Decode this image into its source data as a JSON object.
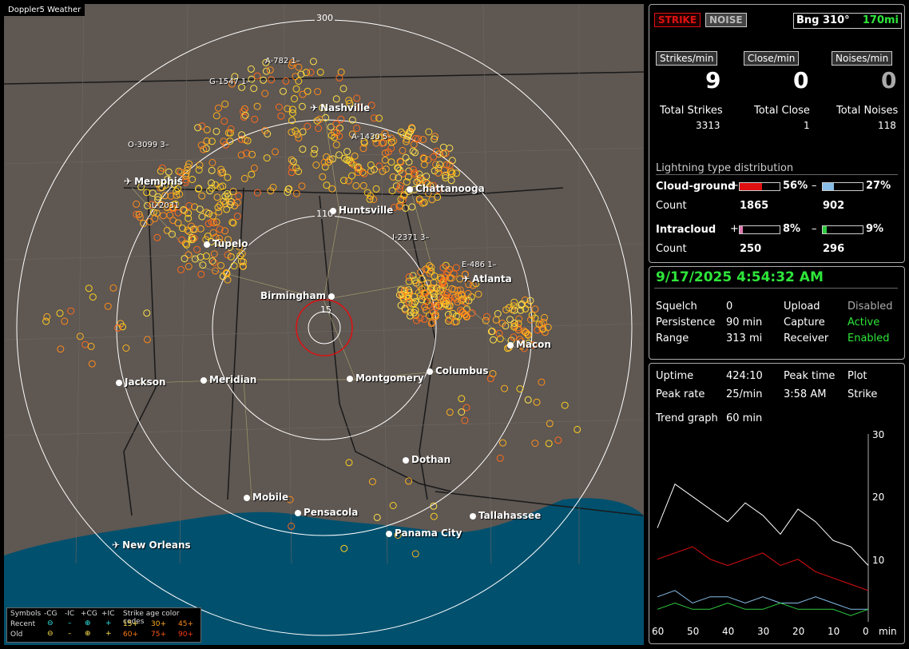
{
  "app_title": "Doppler5 Weather",
  "map": {
    "ring_labels": [
      "300",
      "110",
      "15"
    ],
    "cities": [
      {
        "name": "Nashville",
        "icon": "plane"
      },
      {
        "name": "Memphis",
        "icon": "plane"
      },
      {
        "name": "Chattanooga",
        "icon": "dot"
      },
      {
        "name": "Huntsville",
        "icon": "dot"
      },
      {
        "name": "Tupelo",
        "icon": "dot"
      },
      {
        "name": "Atlanta",
        "icon": "plane"
      },
      {
        "name": "Birmingham",
        "icon": "dot"
      },
      {
        "name": "Macon",
        "icon": "dot"
      },
      {
        "name": "Jackson",
        "icon": "dot"
      },
      {
        "name": "Meridian",
        "icon": "dot"
      },
      {
        "name": "Montgomery",
        "icon": "dot"
      },
      {
        "name": "Columbus",
        "icon": "dot"
      },
      {
        "name": "Dothan",
        "icon": "dot"
      },
      {
        "name": "Mobile",
        "icon": "dot"
      },
      {
        "name": "Pensacola",
        "icon": "dot"
      },
      {
        "name": "Tallahassee",
        "icon": "dot"
      },
      {
        "name": "Panama City",
        "icon": "dot"
      },
      {
        "name": "New Orleans",
        "icon": "plane"
      }
    ],
    "road_labels": [
      "A-782  1–",
      "G-1547  1–",
      "O-3099  3–",
      "A-1430  5–",
      "L-2031",
      "I-2371  3–",
      "E-486  1–"
    ],
    "legend": {
      "symbols": "Symbols",
      "cg_minus": "-CG",
      "ic_minus": "-IC",
      "cg_plus": "+CG",
      "ic_plus": "+IC",
      "age_title": "Strike age color codes",
      "recent": "Recent",
      "old": "Old",
      "ages_recent": [
        "15+",
        "30+",
        "45+"
      ],
      "ages_old": [
        "60+",
        "75+",
        "90+"
      ]
    }
  },
  "panel1": {
    "strike_btn": "STRIKE",
    "noise_btn": "NOISE",
    "bearing": "Bng 310°",
    "range_value": "170mi",
    "labels": {
      "strikes": "Strikes/min",
      "close": "Close/min",
      "noises": "Noises/min"
    },
    "values": {
      "strikes": "9",
      "close": "0",
      "noises": "0"
    },
    "totals_labels": {
      "strikes": "Total Strikes",
      "close": "Total Close",
      "noises": "Total Noises"
    },
    "totals": {
      "strikes": "3313",
      "close": "1",
      "noises": "118"
    },
    "dist_title": "Lightning type distribution",
    "cg_label": "Cloud-ground",
    "ic_label": "Intracloud",
    "count_label": "Count",
    "plus": "+",
    "minus": "–",
    "cg_plus_pct": "56%",
    "cg_minus_pct": "27%",
    "ic_plus_pct": "8%",
    "ic_minus_pct": "9%",
    "cg_plus_frac": 0.56,
    "cg_minus_frac": 0.27,
    "ic_plus_frac": 0.08,
    "ic_minus_frac": 0.09,
    "cg_plus_count": "1865",
    "cg_minus_count": "902",
    "ic_plus_count": "250",
    "ic_minus_count": "296"
  },
  "panel2": {
    "datetime": "9/17/2025 4:54:32 AM",
    "squelch_label": "Squelch",
    "squelch": "0",
    "persistence_label": "Persistence",
    "persistence": "90 min",
    "range_label": "Range",
    "range": "313 mi",
    "upload_label": "Upload",
    "upload": "Disabled",
    "capture_label": "Capture",
    "capture": "Active",
    "receiver_label": "Receiver",
    "receiver": "Enabled"
  },
  "panel3": {
    "uptime_label": "Uptime",
    "uptime": "424:10",
    "peaktime_label": "Peak time",
    "peaktime": "3:58 AM",
    "plot_label": "Plot",
    "plot": "Strike",
    "peakrate_label": "Peak rate",
    "peakrate": "25/min",
    "trend_label": "Trend graph",
    "trend": "60 min",
    "y_ticks": [
      "30",
      "20",
      "10"
    ],
    "x_ticks": [
      "60",
      "50",
      "40",
      "30",
      "20",
      "10",
      "0"
    ],
    "x_unit": "min"
  },
  "chart_data": {
    "type": "line",
    "x": [
      60,
      55,
      50,
      45,
      40,
      35,
      30,
      25,
      20,
      15,
      10,
      5,
      0
    ],
    "ylim": [
      0,
      30
    ],
    "xlabel": "min",
    "series": [
      {
        "values": [
          15,
          22,
          20,
          18,
          16,
          19,
          17,
          14,
          18,
          16,
          13,
          12,
          9
        ]
      },
      {
        "values": [
          10,
          11,
          12,
          10,
          9,
          10,
          11,
          9,
          10,
          8,
          7,
          6,
          5
        ]
      },
      {
        "values": [
          4,
          5,
          3,
          4,
          4,
          3,
          4,
          3,
          3,
          4,
          3,
          2,
          2
        ]
      },
      {
        "values": [
          2,
          3,
          2,
          2,
          3,
          2,
          2,
          3,
          2,
          2,
          2,
          1,
          2
        ]
      }
    ]
  },
  "colors": {
    "white": "#ffffff",
    "red": "#e01010",
    "blue": "#88bde8",
    "green": "#2ecc40",
    "pink": "#e07ab0",
    "water": "#00506e"
  }
}
